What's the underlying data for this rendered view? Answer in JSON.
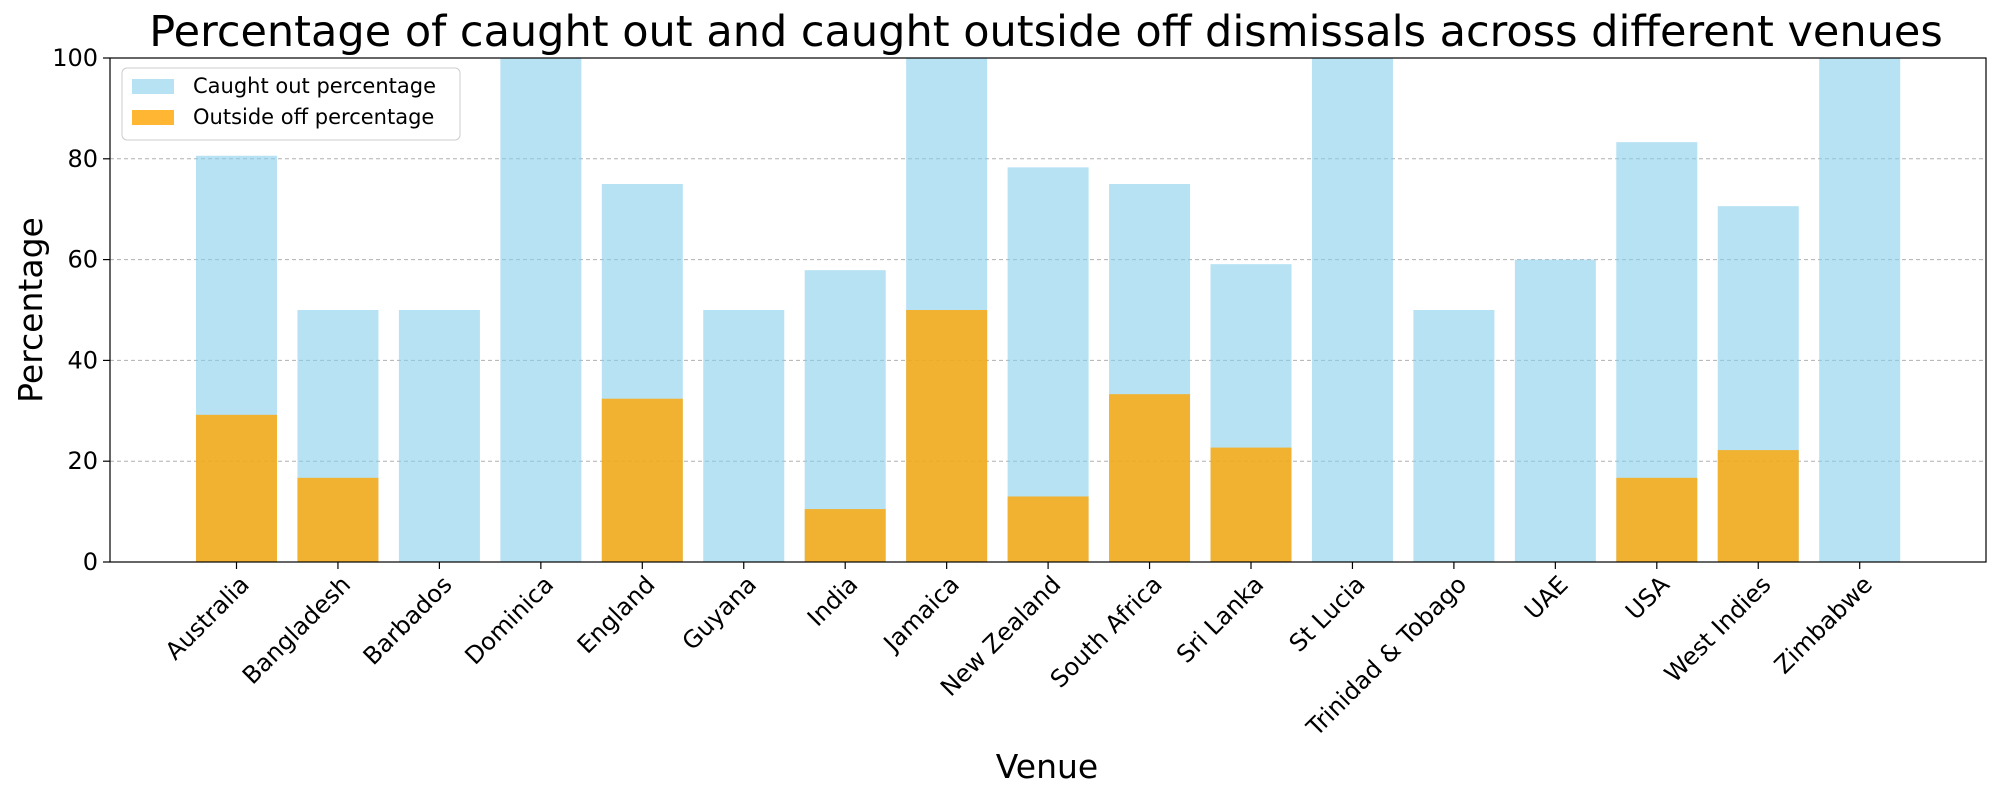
{
  "chart_data": {
    "type": "bar",
    "title": "Percentage of caught out and caught outside off dismissals across different venues",
    "xlabel": "Venue",
    "ylabel": "Percentage",
    "ylim": [
      0,
      100
    ],
    "yticks": [
      0,
      20,
      40,
      60,
      80,
      100
    ],
    "grid": "y-dashed",
    "legend_position": "top-left",
    "bar_mode": "overlay",
    "categories": [
      "Australia",
      "Bangladesh",
      "Barbados",
      "Dominica",
      "England",
      "Guyana",
      "India",
      "Jamaica",
      "New Zealand",
      "South Africa",
      "Sri Lanka",
      "St Lucia",
      "Trinidad & Tobago",
      "UAE",
      "USA",
      "West Indies",
      "Zimbabwe"
    ],
    "series": [
      {
        "name": "Caught out percentage",
        "color": "#87ceeb",
        "opacity": 0.6,
        "values": [
          80.6,
          50,
          50,
          100,
          75,
          50,
          57.9,
          100,
          78.3,
          75,
          59.1,
          100,
          50,
          60,
          83.3,
          70.6,
          100
        ]
      },
      {
        "name": "Outside off percentage",
        "color": "#ffa500",
        "opacity": 0.8,
        "values": [
          29.2,
          16.7,
          0,
          0,
          32.4,
          0,
          10.5,
          50,
          13,
          33.3,
          22.7,
          0,
          0,
          0,
          16.7,
          22.2,
          0
        ]
      }
    ]
  }
}
